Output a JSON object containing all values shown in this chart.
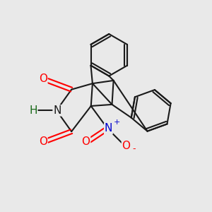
{
  "bg_color": "#e9e9e9",
  "bond_color": "#1a1a1a",
  "bond_width": 1.5,
  "figsize": [
    3.0,
    3.0
  ],
  "dpi": 100,
  "xlim": [
    0.0,
    7.0
  ],
  "ylim": [
    0.5,
    7.5
  ]
}
